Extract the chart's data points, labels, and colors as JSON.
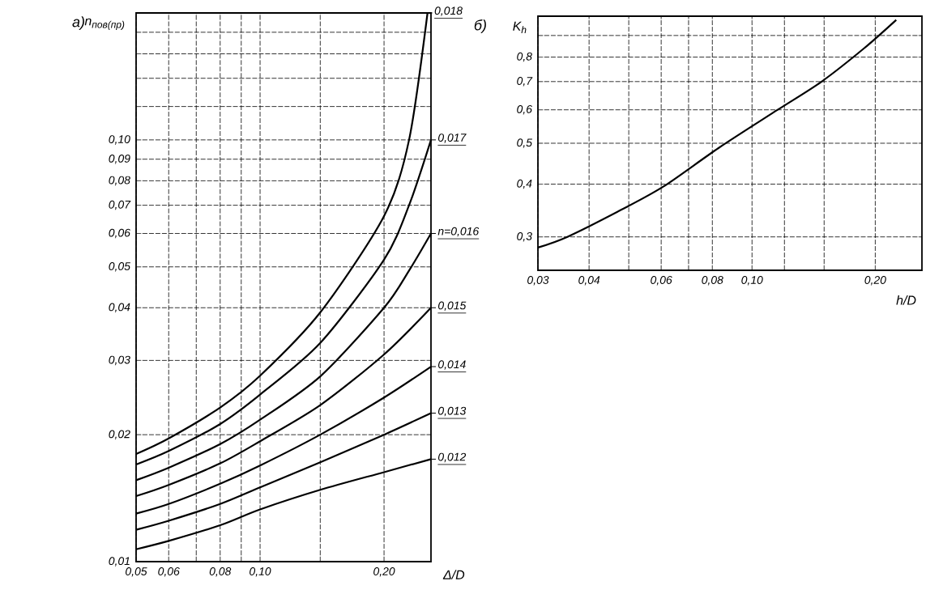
{
  "chart_data": [
    {
      "type": "line",
      "title": "а)",
      "ylabel": "n$_{пов(пр)}$",
      "xlabel": "Δ/D",
      "log": "xy",
      "grid": true,
      "legend": "right",
      "xlim": [
        0.05,
        0.26
      ],
      "ylim": [
        0.01,
        0.2
      ],
      "xticks": [
        {
          "value": 0.05,
          "label": "0,05"
        },
        {
          "value": 0.06,
          "label": "0,06"
        },
        {
          "value": 0.07,
          "label": null
        },
        {
          "value": 0.08,
          "label": "0,08"
        },
        {
          "value": 0.09,
          "label": null
        },
        {
          "value": 0.1,
          "label": "0,10"
        },
        {
          "value": 0.14,
          "label": null
        },
        {
          "value": 0.2,
          "label": "0,20"
        }
      ],
      "yticks": [
        {
          "value": 0.01,
          "label": "0,01"
        },
        {
          "value": 0.02,
          "label": "0,02"
        },
        {
          "value": 0.03,
          "label": "0,03"
        },
        {
          "value": 0.04,
          "label": "0,04"
        },
        {
          "value": 0.05,
          "label": "0,05"
        },
        {
          "value": 0.06,
          "label": "0,06"
        },
        {
          "value": 0.07,
          "label": "0,07"
        },
        {
          "value": 0.08,
          "label": "0,08"
        },
        {
          "value": 0.09,
          "label": "0,09"
        },
        {
          "value": 0.1,
          "label": "0,10"
        },
        {
          "value": 0.12,
          "label": null
        },
        {
          "value": 0.14,
          "label": null
        },
        {
          "value": 0.16,
          "label": null
        },
        {
          "value": 0.18,
          "label": null
        }
      ],
      "series": [
        {
          "name": "0,012",
          "color": "#000000",
          "x": [
            0.05,
            0.06,
            0.08,
            0.1,
            0.14,
            0.2,
            0.26
          ],
          "values": [
            0.0107,
            0.0112,
            0.0122,
            0.0133,
            0.0148,
            0.0163,
            0.0175
          ]
        },
        {
          "name": "0,013",
          "color": "#000000",
          "x": [
            0.05,
            0.06,
            0.08,
            0.1,
            0.14,
            0.2,
            0.26
          ],
          "values": [
            0.0119,
            0.0125,
            0.0137,
            0.015,
            0.0172,
            0.02,
            0.0225
          ]
        },
        {
          "name": "0,014",
          "color": "#000000",
          "x": [
            0.05,
            0.06,
            0.08,
            0.1,
            0.14,
            0.2,
            0.26
          ],
          "values": [
            0.013,
            0.0137,
            0.0153,
            0.0169,
            0.02,
            0.0245,
            0.029
          ]
        },
        {
          "name": "0,015",
          "color": "#000000",
          "x": [
            0.05,
            0.06,
            0.08,
            0.1,
            0.14,
            0.2,
            0.26
          ],
          "values": [
            0.0143,
            0.0152,
            0.0171,
            0.0193,
            0.0235,
            0.031,
            0.04
          ]
        },
        {
          "name": "n=0,016",
          "color": "#000000",
          "x": [
            0.05,
            0.06,
            0.08,
            0.1,
            0.14,
            0.2,
            0.23,
            0.26
          ],
          "values": [
            0.0156,
            0.0167,
            0.019,
            0.0217,
            0.0275,
            0.04,
            0.049,
            0.06
          ]
        },
        {
          "name": "0,017",
          "color": "#000000",
          "x": [
            0.05,
            0.06,
            0.08,
            0.1,
            0.14,
            0.2,
            0.23,
            0.26
          ],
          "values": [
            0.017,
            0.0183,
            0.0212,
            0.0249,
            0.033,
            0.052,
            0.07,
            0.1
          ]
        },
        {
          "name": "0,018",
          "color": "#000000",
          "x": [
            0.05,
            0.06,
            0.08,
            0.1,
            0.14,
            0.2,
            0.23,
            0.255
          ],
          "values": [
            0.018,
            0.0196,
            0.0232,
            0.0276,
            0.039,
            0.066,
            0.1,
            0.2
          ]
        }
      ]
    },
    {
      "type": "line",
      "title": "б)",
      "ylabel": "K$_{h}$",
      "xlabel": "h/D",
      "log": "xy",
      "grid": true,
      "xlim": [
        0.03,
        0.26
      ],
      "ylim": [
        0.25,
        1.0
      ],
      "xticks": [
        {
          "value": 0.03,
          "label": "0,03"
        },
        {
          "value": 0.04,
          "label": "0,04"
        },
        {
          "value": 0.05,
          "label": null
        },
        {
          "value": 0.06,
          "label": "0,06"
        },
        {
          "value": 0.07,
          "label": null
        },
        {
          "value": 0.08,
          "label": "0,08"
        },
        {
          "value": 0.1,
          "label": "0,10"
        },
        {
          "value": 0.12,
          "label": null
        },
        {
          "value": 0.15,
          "label": null
        },
        {
          "value": 0.2,
          "label": "0,20"
        }
      ],
      "yticks": [
        {
          "value": 0.3,
          "label": "0,3"
        },
        {
          "value": 0.4,
          "label": "0,4"
        },
        {
          "value": 0.5,
          "label": "0,5"
        },
        {
          "value": 0.6,
          "label": "0,6"
        },
        {
          "value": 0.7,
          "label": "0,7"
        },
        {
          "value": 0.8,
          "label": "0,8"
        },
        {
          "value": 0.9,
          "label": null
        }
      ],
      "series": [
        {
          "color": "#000000",
          "x": [
            0.03,
            0.0354,
            0.048,
            0.0608,
            0.0828,
            0.1155,
            0.1479,
            0.188,
            0.225
          ],
          "values": [
            0.283,
            0.3,
            0.348,
            0.395,
            0.487,
            0.6,
            0.7,
            0.84,
            0.98
          ]
        }
      ]
    }
  ]
}
